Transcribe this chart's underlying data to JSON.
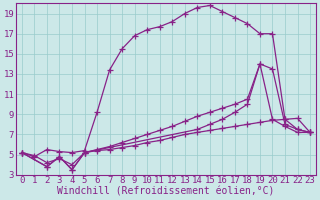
{
  "xlabel": "Windchill (Refroidissement éolien,°C)",
  "bg_color": "#cce8e8",
  "grid_color": "#99cccc",
  "line_color": "#882288",
  "xlim": [
    -0.5,
    23.5
  ],
  "ylim": [
    3,
    20
  ],
  "xticks": [
    0,
    1,
    2,
    3,
    4,
    5,
    6,
    7,
    8,
    9,
    10,
    11,
    12,
    13,
    14,
    15,
    16,
    17,
    18,
    19,
    20,
    21,
    22,
    23
  ],
  "yticks": [
    3,
    5,
    7,
    9,
    11,
    13,
    15,
    17,
    19
  ],
  "curve1_x": [
    0,
    1,
    2,
    3,
    4,
    5,
    6,
    7,
    8,
    9,
    10,
    11,
    12,
    13,
    14,
    15,
    16,
    17,
    18,
    19,
    20,
    21,
    22,
    23
  ],
  "curve1_y": [
    5.2,
    4.8,
    5.5,
    5.3,
    5.2,
    5.4,
    9.2,
    13.4,
    15.5,
    16.8,
    17.4,
    17.7,
    18.2,
    19.0,
    19.6,
    19.8,
    19.2,
    18.6,
    18.0,
    17.0,
    17.0,
    8.5,
    7.5,
    7.2
  ],
  "curve2_x": [
    0,
    2,
    3,
    4,
    5,
    14,
    15,
    16,
    17,
    18,
    19,
    20,
    21,
    22,
    23
  ],
  "curve2_y": [
    5.2,
    3.8,
    4.8,
    3.5,
    5.2,
    7.5,
    8.0,
    8.5,
    9.2,
    10.0,
    14.0,
    8.5,
    7.8,
    7.2,
    7.2
  ],
  "curve3_x": [
    0,
    2,
    3,
    4,
    5,
    6,
    7,
    8,
    9,
    10,
    11,
    12,
    13,
    14,
    15,
    16,
    17,
    18,
    19,
    20,
    21,
    22,
    23
  ],
  "curve3_y": [
    5.2,
    3.8,
    4.8,
    3.5,
    5.2,
    5.5,
    5.8,
    6.2,
    6.6,
    7.0,
    7.4,
    7.8,
    8.3,
    8.8,
    9.2,
    9.6,
    10.0,
    10.5,
    14.0,
    13.5,
    8.0,
    7.5,
    7.2
  ],
  "curve4_x": [
    0,
    1,
    2,
    3,
    4,
    5,
    6,
    7,
    8,
    9,
    10,
    11,
    12,
    13,
    14,
    15,
    16,
    17,
    18,
    19,
    20,
    21,
    22,
    23
  ],
  "curve4_y": [
    5.2,
    4.9,
    4.2,
    4.6,
    4.0,
    5.2,
    5.4,
    5.5,
    5.7,
    5.9,
    6.2,
    6.4,
    6.7,
    7.0,
    7.2,
    7.4,
    7.6,
    7.8,
    8.0,
    8.2,
    8.4,
    8.5,
    8.6,
    7.2
  ],
  "xlabel_fontsize": 7,
  "tick_fontsize": 6.5
}
